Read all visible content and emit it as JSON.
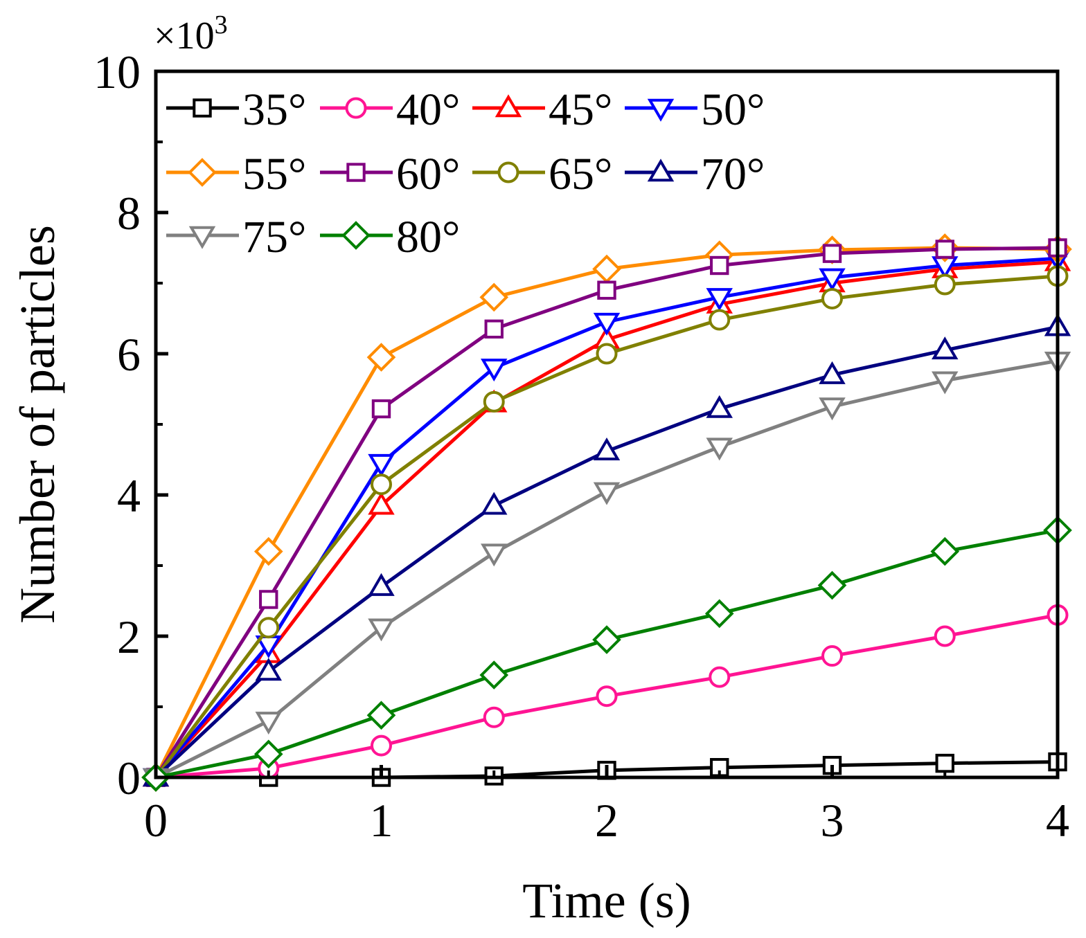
{
  "chart_data": {
    "type": "line",
    "title": "",
    "xlabel": "Time (s)",
    "ylabel": "Number of particles",
    "multiplier_prefix": "×10",
    "multiplier_exponent": "3",
    "xlim": [
      0,
      4
    ],
    "ylim": [
      0,
      10
    ],
    "x_ticks": [
      0,
      1,
      2,
      3,
      4
    ],
    "x_tick_labels": [
      "0",
      "1",
      "2",
      "3",
      "4"
    ],
    "y_ticks": [
      0,
      2,
      4,
      6,
      8,
      10
    ],
    "y_tick_labels": [
      "0",
      "2",
      "4",
      "6",
      "8",
      "10"
    ],
    "y_minor_ticks": [
      1,
      3,
      5,
      7,
      9
    ],
    "x_minor_ticks": [
      0.5,
      1.5,
      2.5,
      3.5
    ],
    "grid": false,
    "legend_position": "top-left",
    "x": [
      0,
      0.5,
      1,
      1.5,
      2,
      2.5,
      3,
      3.5,
      4
    ],
    "series": [
      {
        "name": "35°",
        "color": "#000000",
        "marker": "square",
        "values": [
          0,
          0,
          0,
          0.02,
          0.1,
          0.14,
          0.17,
          0.2,
          0.22
        ]
      },
      {
        "name": "40°",
        "color": "#ff1493",
        "marker": "circle",
        "values": [
          0,
          0.13,
          0.45,
          0.85,
          1.15,
          1.42,
          1.72,
          2.0,
          2.3
        ]
      },
      {
        "name": "45°",
        "color": "#ff0000",
        "marker": "triangle-up",
        "values": [
          0,
          1.75,
          3.85,
          5.3,
          6.2,
          6.7,
          7.0,
          7.2,
          7.3
        ]
      },
      {
        "name": "50°",
        "color": "#0000ff",
        "marker": "triangle-down",
        "values": [
          0,
          1.88,
          4.45,
          5.8,
          6.45,
          6.8,
          7.08,
          7.25,
          7.35
        ]
      },
      {
        "name": "55°",
        "color": "#ff8c00",
        "marker": "diamond",
        "values": [
          0,
          3.2,
          5.95,
          6.8,
          7.2,
          7.4,
          7.47,
          7.5,
          7.48
        ]
      },
      {
        "name": "60°",
        "color": "#800080",
        "marker": "square",
        "values": [
          0,
          2.52,
          5.22,
          6.35,
          6.9,
          7.25,
          7.42,
          7.48,
          7.5
        ]
      },
      {
        "name": "65°",
        "color": "#808000",
        "marker": "circle",
        "values": [
          0,
          2.12,
          4.15,
          5.32,
          6.0,
          6.48,
          6.78,
          6.98,
          7.1
        ]
      },
      {
        "name": "70°",
        "color": "#000080",
        "marker": "triangle-up",
        "values": [
          0,
          1.5,
          2.7,
          3.85,
          4.62,
          5.22,
          5.7,
          6.05,
          6.38
        ]
      },
      {
        "name": "75°",
        "color": "#808080",
        "marker": "triangle-down",
        "values": [
          0,
          0.8,
          2.12,
          3.18,
          4.05,
          4.68,
          5.25,
          5.62,
          5.9
        ]
      },
      {
        "name": "80°",
        "color": "#008000",
        "marker": "diamond",
        "values": [
          0,
          0.33,
          0.88,
          1.45,
          1.95,
          2.32,
          2.72,
          3.2,
          3.5
        ]
      }
    ]
  }
}
